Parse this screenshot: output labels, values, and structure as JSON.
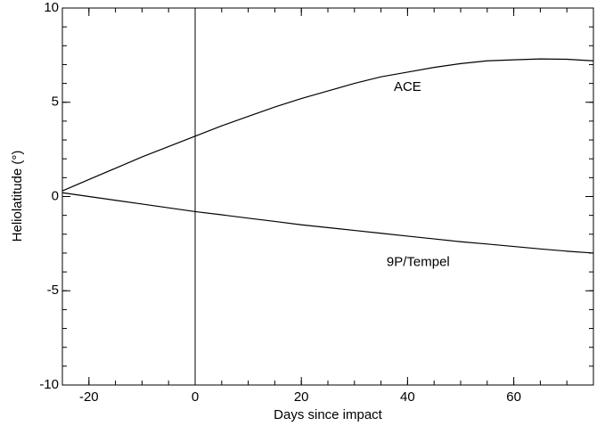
{
  "chart_data": {
    "type": "line",
    "xlabel": "Days since impact",
    "ylabel": "Heliolatitude (°)",
    "x": [
      -25,
      -20,
      -15,
      -10,
      -5,
      0,
      5,
      10,
      15,
      20,
      25,
      30,
      35,
      40,
      45,
      50,
      55,
      60,
      65,
      70,
      75
    ],
    "series": [
      {
        "name": "ACE",
        "color": "#000000",
        "values": [
          0.3,
          0.9,
          1.5,
          2.1,
          2.65,
          3.2,
          3.75,
          4.25,
          4.75,
          5.2,
          5.6,
          6.0,
          6.35,
          6.6,
          6.85,
          7.05,
          7.2,
          7.25,
          7.3,
          7.28,
          7.2
        ]
      },
      {
        "name": "9P/Tempel",
        "color": "#000000",
        "values": [
          0.2,
          0.0,
          -0.2,
          -0.4,
          -0.6,
          -0.8,
          -0.97,
          -1.15,
          -1.32,
          -1.5,
          -1.65,
          -1.8,
          -1.95,
          -2.1,
          -2.25,
          -2.4,
          -2.52,
          -2.65,
          -2.78,
          -2.9,
          -3.0
        ]
      }
    ],
    "vertical_line": 0,
    "xlim": [
      -25,
      75
    ],
    "xticks": [
      -20,
      0,
      20,
      40,
      60
    ],
    "ylim": [
      -10,
      10
    ],
    "yticks": [
      -10,
      -5,
      0,
      5,
      10
    ],
    "grid": false
  }
}
